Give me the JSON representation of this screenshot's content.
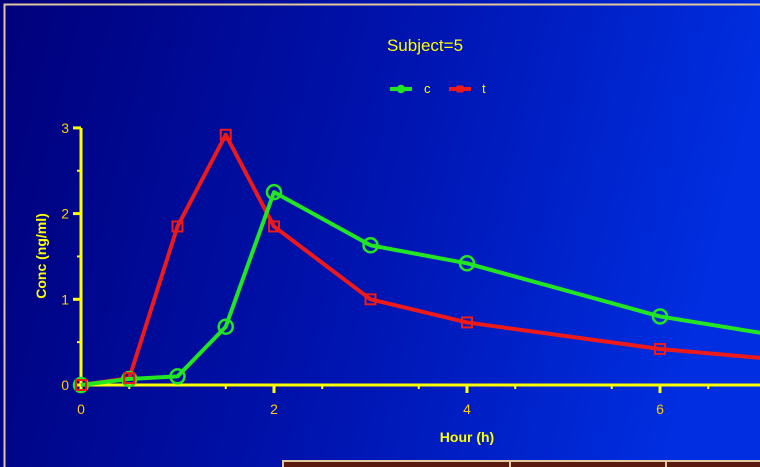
{
  "chart_data": {
    "type": "line",
    "title": "Subject=5",
    "xlabel": "Hour (h)",
    "ylabel": "Conc (ng/ml)",
    "xlim": [
      0,
      7.2
    ],
    "ylim": [
      0,
      3
    ],
    "xticks": [
      "0",
      "2",
      "4",
      "6"
    ],
    "yticks": [
      "0",
      "1",
      "2",
      "3"
    ],
    "grid": false,
    "legend_position": "top-center",
    "series": [
      {
        "name": "c",
        "color": "#22e622",
        "marker": "circle",
        "x": [
          0,
          0.5,
          1,
          1.5,
          2,
          3,
          4,
          6,
          7.2
        ],
        "y": [
          0.0,
          0.07,
          0.1,
          0.68,
          2.25,
          1.63,
          1.42,
          0.8,
          0.58
        ]
      },
      {
        "name": "t",
        "color": "#ee1a1a",
        "marker": "square",
        "x": [
          0,
          0.5,
          1,
          1.5,
          2,
          3,
          4,
          6,
          7.2
        ],
        "y": [
          0.0,
          0.08,
          1.85,
          2.92,
          1.85,
          1.0,
          0.73,
          0.42,
          0.3
        ]
      }
    ]
  },
  "colors": {
    "background_top_left": "#000080",
    "background_right": "#0028d8",
    "border": "#e0c8a0",
    "axis": "#ffff00",
    "title_text": "#ffff00",
    "tick_text": "#ffcc00"
  }
}
